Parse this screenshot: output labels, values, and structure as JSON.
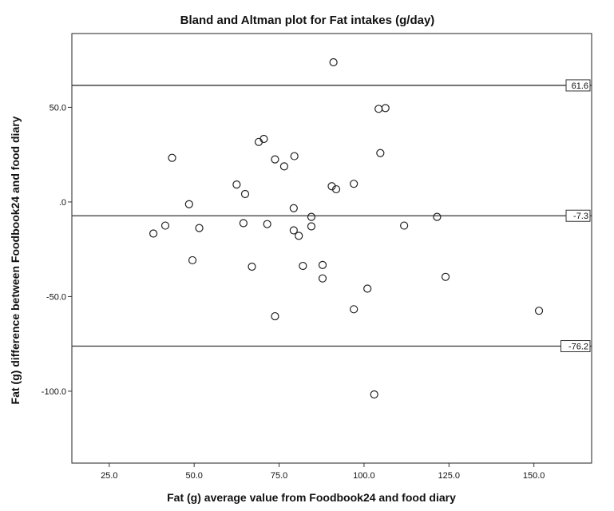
{
  "chart_data": {
    "type": "scatter",
    "title": "Bland and Altman plot for Fat intakes (g/day)",
    "xlabel": "Fat (g) average value from Foodbook24 and food diary",
    "ylabel": "Fat (g) difference between Foodbook24 and food diary",
    "xlim": [
      14,
      167
    ],
    "ylim": [
      -138,
      89
    ],
    "grid": false,
    "legend": "none",
    "x_ticks": [
      {
        "value": 25,
        "label": "25.0"
      },
      {
        "value": 50,
        "label": "50.0"
      },
      {
        "value": 75,
        "label": "75.0"
      },
      {
        "value": 100,
        "label": "100.0"
      },
      {
        "value": 125,
        "label": "125.0"
      },
      {
        "value": 150,
        "label": "150.0"
      }
    ],
    "y_ticks": [
      {
        "value": 50,
        "label": "50.0"
      },
      {
        "value": 0,
        "label": ".0"
      },
      {
        "value": -50,
        "label": "-50.0"
      },
      {
        "value": -100,
        "label": "-100.0"
      }
    ],
    "reference_lines": [
      {
        "value": 61.6,
        "label": "61.6"
      },
      {
        "value": -7.3,
        "label": "-7.3"
      },
      {
        "value": -76.2,
        "label": "-76.2"
      }
    ],
    "points": [
      {
        "x": 38,
        "y": -16.7
      },
      {
        "x": 41.5,
        "y": -12.5
      },
      {
        "x": 43.5,
        "y": 23.3
      },
      {
        "x": 48.5,
        "y": -1.2
      },
      {
        "x": 49.5,
        "y": -30.8
      },
      {
        "x": 51.5,
        "y": -13.8
      },
      {
        "x": 62.5,
        "y": 9.2
      },
      {
        "x": 64.5,
        "y": -11.2
      },
      {
        "x": 65,
        "y": 4.2
      },
      {
        "x": 67,
        "y": -34.2
      },
      {
        "x": 69,
        "y": 31.7
      },
      {
        "x": 70.5,
        "y": 33.3
      },
      {
        "x": 71.5,
        "y": -11.7
      },
      {
        "x": 73.8,
        "y": 22.5
      },
      {
        "x": 73.8,
        "y": -60.4
      },
      {
        "x": 76.5,
        "y": 18.8
      },
      {
        "x": 79.3,
        "y": -3.3
      },
      {
        "x": 79.3,
        "y": -15
      },
      {
        "x": 79.5,
        "y": 24.2
      },
      {
        "x": 80.8,
        "y": -17.9
      },
      {
        "x": 82,
        "y": -33.8
      },
      {
        "x": 84.5,
        "y": -7.9
      },
      {
        "x": 84.5,
        "y": -12.9
      },
      {
        "x": 87.8,
        "y": -33.3
      },
      {
        "x": 87.8,
        "y": -40.4
      },
      {
        "x": 90.5,
        "y": 8.3
      },
      {
        "x": 91,
        "y": 73.8
      },
      {
        "x": 91.8,
        "y": 6.7
      },
      {
        "x": 97,
        "y": 9.6
      },
      {
        "x": 97,
        "y": -56.7
      },
      {
        "x": 101,
        "y": -45.8
      },
      {
        "x": 103,
        "y": -101.7
      },
      {
        "x": 104.3,
        "y": 49.2
      },
      {
        "x": 104.8,
        "y": 25.8
      },
      {
        "x": 106.3,
        "y": 49.6
      },
      {
        "x": 111.8,
        "y": -12.5
      },
      {
        "x": 121.5,
        "y": -7.9
      },
      {
        "x": 124,
        "y": -39.6
      },
      {
        "x": 151.5,
        "y": -57.5
      }
    ]
  }
}
